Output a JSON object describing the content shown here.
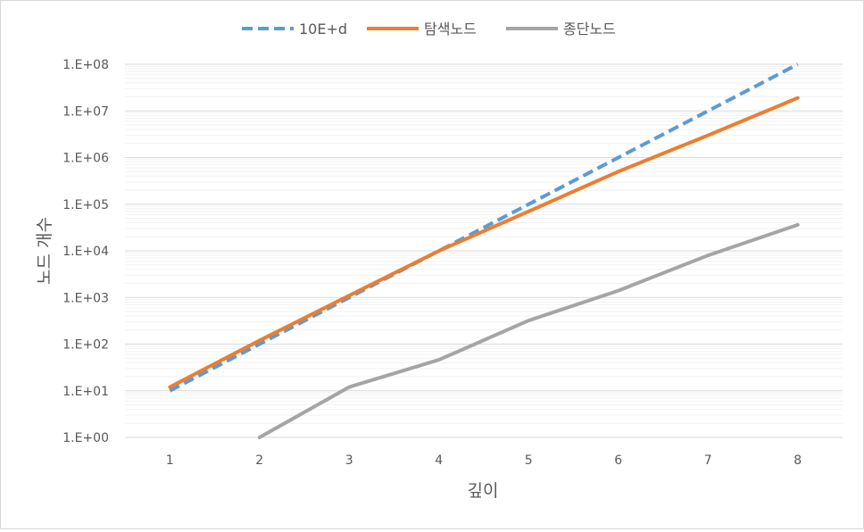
{
  "chart_data": {
    "type": "line",
    "xlabel": "깊이",
    "ylabel": "노드 개수",
    "x": [
      1,
      2,
      3,
      4,
      5,
      6,
      7,
      8
    ],
    "y_scale": "log",
    "ylim": [
      1,
      100000000
    ],
    "y_ticks": [
      "1.E+00",
      "1.E+01",
      "1.E+02",
      "1.E+03",
      "1.E+04",
      "1.E+05",
      "1.E+06",
      "1.E+07",
      "1.E+08"
    ],
    "x_ticks": [
      "1",
      "2",
      "3",
      "4",
      "5",
      "6",
      "7",
      "8"
    ],
    "grid": true,
    "legend_position": "top",
    "series": [
      {
        "name": "10E+d",
        "color": "#5b9bd5",
        "dashed": true,
        "values": [
          10,
          100,
          1000,
          10000,
          100000,
          1000000,
          10000000,
          100000000
        ]
      },
      {
        "name": "탐색노드",
        "color": "#ed7d31",
        "dashed": false,
        "values": [
          12,
          120,
          1100,
          10000,
          70000,
          500000,
          3000000,
          19000000
        ]
      },
      {
        "name": "종단노드",
        "color": "#a5a5a5",
        "dashed": false,
        "values": [
          null,
          1,
          12,
          46,
          320,
          1400,
          8000,
          36000
        ]
      }
    ]
  }
}
